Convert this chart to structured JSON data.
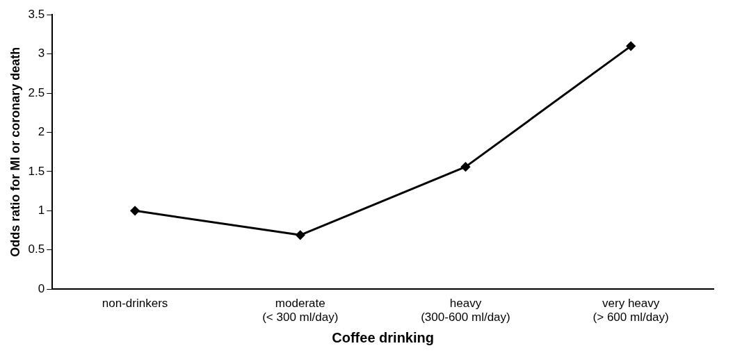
{
  "chart_data": {
    "type": "line",
    "xlabel": "Coffee drinking",
    "ylabel": "Odds ratio for MI or coronary death",
    "categories": [
      "non-drinkers",
      "moderate (< 300 ml/day)",
      "heavy (300-600 ml/day)",
      "very heavy (> 600 ml/day)"
    ],
    "series": [
      {
        "color": "#000000",
        "values": [
          1,
          0.69,
          1.56,
          3.1
        ]
      }
    ],
    "ylim": [
      0,
      3.5
    ],
    "yticks": [
      0,
      0.5,
      1,
      1.5,
      2,
      2.5,
      3,
      3.5
    ],
    "grid": false,
    "legend": false,
    "marker": "diamond",
    "line_style": "solid"
  }
}
